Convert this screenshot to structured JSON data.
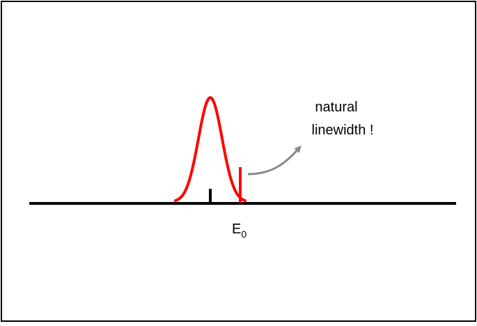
{
  "annotation": {
    "lines": [
      "natural",
      "linewidth !"
    ]
  },
  "axis_label": {
    "text": "E",
    "subscript": "0"
  }
}
